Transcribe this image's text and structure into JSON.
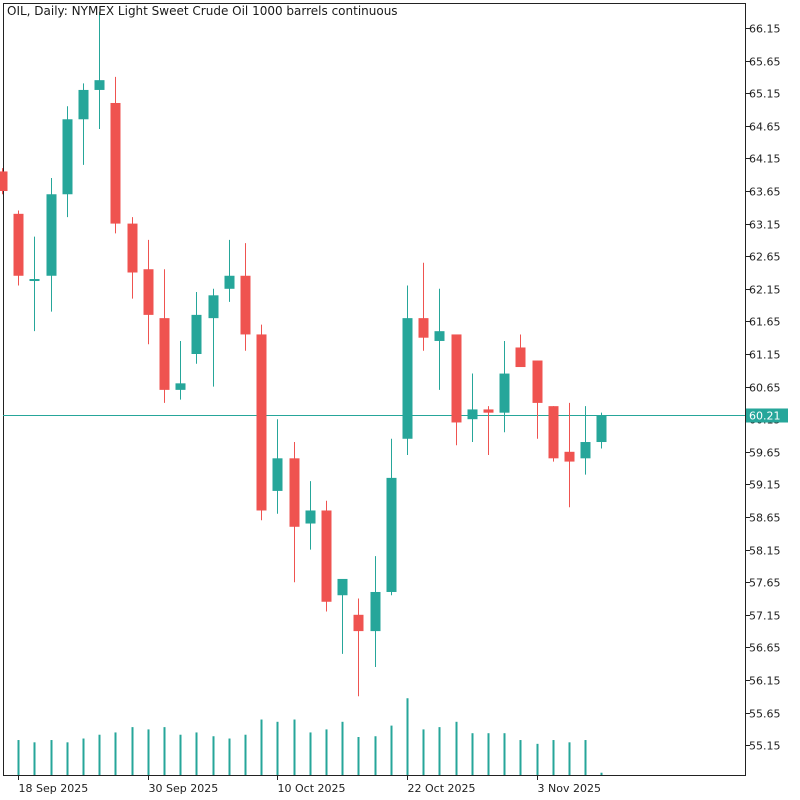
{
  "colors": {
    "bull": "#26a69a",
    "bear": "#ef5350",
    "volume": "#26a69a",
    "current_price_line": "#26a69a",
    "axis": "#222222"
  },
  "chart_data": {
    "type": "candlestick",
    "title": "OIL, Daily:  NYMEX Light Sweet Crude Oil 1000 barrels continuous",
    "current_price": 60.21,
    "current_price_label": "60.21",
    "ylim": [
      54.92,
      66.42
    ],
    "y_ticks": [
      "66.15",
      "65.65",
      "65.15",
      "64.65",
      "64.15",
      "63.65",
      "63.15",
      "62.65",
      "62.15",
      "61.65",
      "61.15",
      "60.65",
      "60.15",
      "59.65",
      "59.15",
      "58.65",
      "58.15",
      "57.65",
      "57.15",
      "56.65",
      "56.15",
      "55.65",
      "55.15"
    ],
    "x_ticks": [
      {
        "index": 1,
        "label": "18 Sep 2025"
      },
      {
        "index": 9,
        "label": "30 Sep 2025"
      },
      {
        "index": 17,
        "label": "10 Oct 2025"
      },
      {
        "index": 25,
        "label": "22 Oct 2025"
      },
      {
        "index": 33,
        "label": "3 Nov 2025"
      }
    ],
    "candles": [
      {
        "open": 63.95,
        "high": 64.0,
        "low": 63.6,
        "close": 63.65,
        "volume": 0
      },
      {
        "open": 63.3,
        "high": 63.35,
        "low": 62.2,
        "close": 62.35,
        "volume": 46
      },
      {
        "open": 62.3,
        "high": 62.95,
        "low": 61.5,
        "close": 62.3,
        "volume": 43
      },
      {
        "open": 62.35,
        "high": 63.85,
        "low": 61.8,
        "close": 63.6,
        "volume": 46
      },
      {
        "open": 63.6,
        "high": 64.95,
        "low": 63.25,
        "close": 64.75,
        "volume": 43
      },
      {
        "open": 64.75,
        "high": 65.3,
        "low": 64.05,
        "close": 65.2,
        "volume": 48
      },
      {
        "open": 65.2,
        "high": 66.4,
        "low": 64.6,
        "close": 65.35,
        "volume": 53
      },
      {
        "open": 65.0,
        "high": 65.4,
        "low": 63.0,
        "close": 63.15,
        "volume": 56
      },
      {
        "open": 63.15,
        "high": 63.25,
        "low": 62.0,
        "close": 62.4,
        "volume": 63
      },
      {
        "open": 62.45,
        "high": 62.9,
        "low": 61.3,
        "close": 61.75,
        "volume": 60
      },
      {
        "open": 61.7,
        "high": 62.45,
        "low": 60.4,
        "close": 60.6,
        "volume": 63
      },
      {
        "open": 60.6,
        "high": 61.35,
        "low": 60.45,
        "close": 60.7,
        "volume": 53
      },
      {
        "open": 61.15,
        "high": 62.1,
        "low": 61.0,
        "close": 61.75,
        "volume": 56
      },
      {
        "open": 61.7,
        "high": 62.15,
        "low": 60.65,
        "close": 62.05,
        "volume": 51
      },
      {
        "open": 62.15,
        "high": 62.9,
        "low": 61.95,
        "close": 62.35,
        "volume": 48
      },
      {
        "open": 62.35,
        "high": 62.85,
        "low": 61.2,
        "close": 61.45,
        "volume": 53
      },
      {
        "open": 61.45,
        "high": 61.6,
        "low": 58.6,
        "close": 58.75,
        "volume": 73
      },
      {
        "open": 59.05,
        "high": 60.15,
        "low": 58.7,
        "close": 59.55,
        "volume": 70
      },
      {
        "open": 59.55,
        "high": 59.8,
        "low": 57.65,
        "close": 58.5,
        "volume": 73
      },
      {
        "open": 58.55,
        "high": 59.2,
        "low": 58.15,
        "close": 58.75,
        "volume": 56
      },
      {
        "open": 58.75,
        "high": 58.9,
        "low": 57.2,
        "close": 57.35,
        "volume": 60
      },
      {
        "open": 57.45,
        "high": 57.7,
        "low": 56.55,
        "close": 57.7,
        "volume": 70
      },
      {
        "open": 57.15,
        "high": 57.4,
        "low": 55.9,
        "close": 56.9,
        "volume": 50
      },
      {
        "open": 56.9,
        "high": 58.05,
        "low": 56.35,
        "close": 57.5,
        "volume": 51
      },
      {
        "open": 57.5,
        "high": 59.85,
        "low": 57.45,
        "close": 59.25,
        "volume": 65
      },
      {
        "open": 59.85,
        "high": 62.2,
        "low": 59.6,
        "close": 61.7,
        "volume": 101
      },
      {
        "open": 61.7,
        "high": 62.55,
        "low": 61.2,
        "close": 61.4,
        "volume": 60
      },
      {
        "open": 61.35,
        "high": 62.15,
        "low": 60.6,
        "close": 61.5,
        "volume": 63
      },
      {
        "open": 61.45,
        "high": 61.45,
        "low": 59.75,
        "close": 60.1,
        "volume": 70
      },
      {
        "open": 60.15,
        "high": 60.85,
        "low": 59.8,
        "close": 60.3,
        "volume": 55
      },
      {
        "open": 60.3,
        "high": 60.35,
        "low": 59.6,
        "close": 60.25,
        "volume": 55
      },
      {
        "open": 60.25,
        "high": 61.35,
        "low": 59.95,
        "close": 60.85,
        "volume": 55
      },
      {
        "open": 61.25,
        "high": 61.45,
        "low": 60.95,
        "close": 60.95,
        "volume": 46
      },
      {
        "open": 61.05,
        "high": 61.05,
        "low": 59.85,
        "close": 60.4,
        "volume": 41
      },
      {
        "open": 60.35,
        "high": 60.35,
        "low": 59.5,
        "close": 59.55,
        "volume": 46
      },
      {
        "open": 59.65,
        "high": 60.4,
        "low": 58.8,
        "close": 59.5,
        "volume": 43
      },
      {
        "open": 59.55,
        "high": 60.35,
        "low": 59.3,
        "close": 59.8,
        "volume": 46
      },
      {
        "open": 59.8,
        "high": 60.25,
        "low": 59.7,
        "close": 60.21,
        "volume": 3
      }
    ]
  }
}
